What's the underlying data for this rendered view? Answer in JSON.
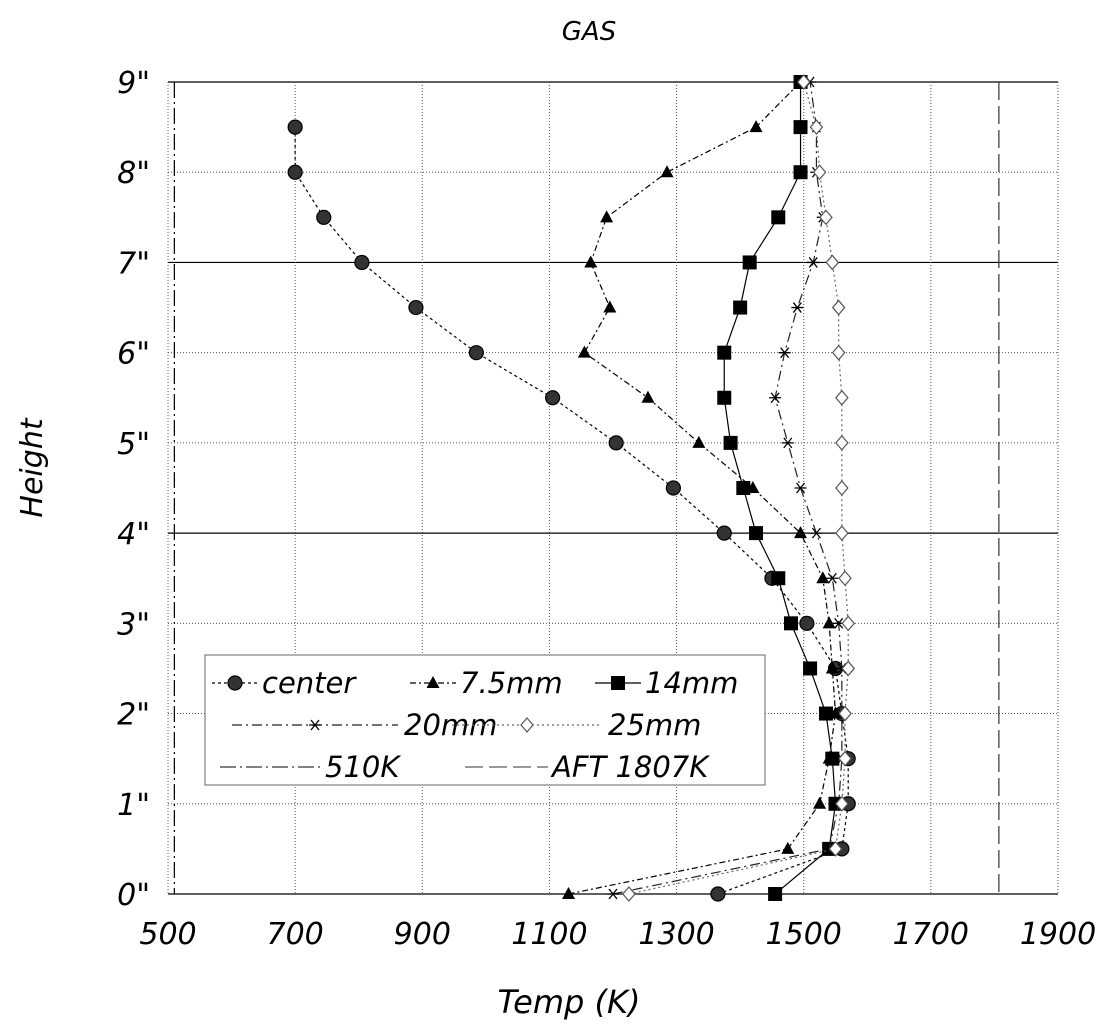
{
  "chart_data": {
    "type": "line",
    "title": "GAS",
    "xlabel": "Temp (K)",
    "ylabel": "Height",
    "xlim": [
      500,
      1900
    ],
    "ylim": [
      0,
      9
    ],
    "xticks": [
      "500",
      "700",
      "900",
      "1100",
      "1300",
      "1500",
      "1700",
      "1900"
    ],
    "yticks": [
      "0\"",
      "1\"",
      "2\"",
      "3\"",
      "4\"",
      "5\"",
      "6\"",
      "7\"",
      "8\"",
      "9\""
    ],
    "grid": true,
    "legend_position": "lower-left",
    "series": [
      {
        "name": "center",
        "marker": "circle",
        "points": [
          [
            1365,
            0
          ],
          [
            1560,
            0.5
          ],
          [
            1570,
            1.0
          ],
          [
            1570,
            1.5
          ],
          [
            1560,
            2.0
          ],
          [
            1550,
            2.5
          ],
          [
            1505,
            3.0
          ],
          [
            1450,
            3.5
          ],
          [
            1375,
            4.0
          ],
          [
            1295,
            4.5
          ],
          [
            1205,
            5.0
          ],
          [
            1105,
            5.5
          ],
          [
            985,
            6.0
          ],
          [
            890,
            6.5
          ],
          [
            805,
            7.0
          ],
          [
            745,
            7.5
          ],
          [
            700,
            8.0
          ],
          [
            700,
            8.5
          ]
        ]
      },
      {
        "name": "7.5mm",
        "marker": "triangle",
        "points": [
          [
            1130,
            0
          ],
          [
            1475,
            0.5
          ],
          [
            1525,
            1.0
          ],
          [
            1540,
            1.5
          ],
          [
            1550,
            2.0
          ],
          [
            1545,
            2.5
          ],
          [
            1540,
            3.0
          ],
          [
            1530,
            3.5
          ],
          [
            1495,
            4.0
          ],
          [
            1420,
            4.5
          ],
          [
            1335,
            5.0
          ],
          [
            1255,
            5.5
          ],
          [
            1155,
            6.0
          ],
          [
            1195,
            6.5
          ],
          [
            1165,
            7.0
          ],
          [
            1190,
            7.5
          ],
          [
            1285,
            8.0
          ],
          [
            1425,
            8.5
          ],
          [
            1495,
            9.0
          ]
        ]
      },
      {
        "name": "14mm",
        "marker": "square",
        "points": [
          [
            1455,
            0
          ],
          [
            1540,
            0.5
          ],
          [
            1550,
            1.0
          ],
          [
            1545,
            1.5
          ],
          [
            1535,
            2.0
          ],
          [
            1510,
            2.5
          ],
          [
            1480,
            3.0
          ],
          [
            1460,
            3.5
          ],
          [
            1425,
            4.0
          ],
          [
            1405,
            4.5
          ],
          [
            1385,
            5.0
          ],
          [
            1375,
            5.5
          ],
          [
            1375,
            6.0
          ],
          [
            1400,
            6.5
          ],
          [
            1415,
            7.0
          ],
          [
            1460,
            7.5
          ],
          [
            1495,
            8.0
          ],
          [
            1495,
            8.5
          ],
          [
            1495,
            9.0
          ]
        ]
      },
      {
        "name": "20mm",
        "marker": "asterisk",
        "points": [
          [
            1200,
            0
          ],
          [
            1540,
            0.5
          ],
          [
            1555,
            1.0
          ],
          [
            1560,
            1.5
          ],
          [
            1560,
            2.0
          ],
          [
            1560,
            2.5
          ],
          [
            1555,
            3.0
          ],
          [
            1545,
            3.5
          ],
          [
            1520,
            4.0
          ],
          [
            1495,
            4.5
          ],
          [
            1475,
            5.0
          ],
          [
            1455,
            5.5
          ],
          [
            1470,
            6.0
          ],
          [
            1490,
            6.5
          ],
          [
            1515,
            7.0
          ],
          [
            1530,
            7.5
          ],
          [
            1520,
            8.0
          ],
          [
            1520,
            8.5
          ],
          [
            1510,
            9.0
          ]
        ]
      },
      {
        "name": "25mm",
        "marker": "diamond",
        "points": [
          [
            1225,
            0
          ],
          [
            1550,
            0.5
          ],
          [
            1560,
            1.0
          ],
          [
            1565,
            1.5
          ],
          [
            1565,
            2.0
          ],
          [
            1570,
            2.5
          ],
          [
            1570,
            3.0
          ],
          [
            1565,
            3.5
          ],
          [
            1560,
            4.0
          ],
          [
            1560,
            4.5
          ],
          [
            1560,
            5.0
          ],
          [
            1560,
            5.5
          ],
          [
            1555,
            6.0
          ],
          [
            1555,
            6.5
          ],
          [
            1545,
            7.0
          ],
          [
            1535,
            7.5
          ],
          [
            1525,
            8.0
          ],
          [
            1520,
            8.5
          ],
          [
            1500,
            9.0
          ]
        ]
      }
    ],
    "reference_lines": [
      {
        "name": "510K",
        "x": 510
      },
      {
        "name": "AFT 1807K",
        "x": 1807
      }
    ]
  }
}
